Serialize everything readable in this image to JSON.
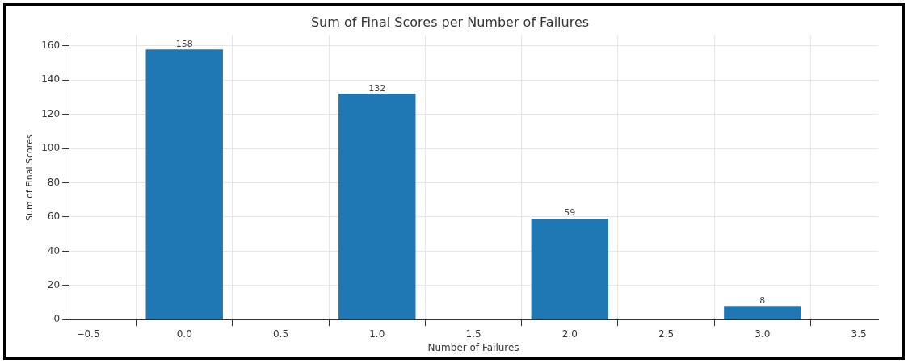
{
  "chart_data": {
    "type": "bar",
    "title": "Sum of Final Scores per Number of Failures",
    "xlabel": "Number of Failures",
    "ylabel": "Sum of Final Scores",
    "x": [
      0,
      1,
      2,
      3
    ],
    "values": [
      158,
      132,
      59,
      8
    ],
    "color": "#1f77b4",
    "xlim": [
      -0.6,
      3.6
    ],
    "xticks": [
      {
        "value": -0.5,
        "label": "−0.5"
      },
      {
        "value": 0,
        "label": "0.0"
      },
      {
        "value": 0.5,
        "label": "0.5"
      },
      {
        "value": 1,
        "label": "1.0"
      },
      {
        "value": 1.5,
        "label": "1.5"
      },
      {
        "value": 2,
        "label": "2.0"
      },
      {
        "value": 2.5,
        "label": "2.5"
      },
      {
        "value": 3,
        "label": "3.0"
      },
      {
        "value": 3.5,
        "label": "3.5"
      }
    ],
    "ylim": [
      0,
      166
    ],
    "yticks": [
      0,
      20,
      40,
      60,
      80,
      100,
      120,
      140,
      160
    ],
    "grid": true,
    "data_labels": true,
    "legend": false
  }
}
